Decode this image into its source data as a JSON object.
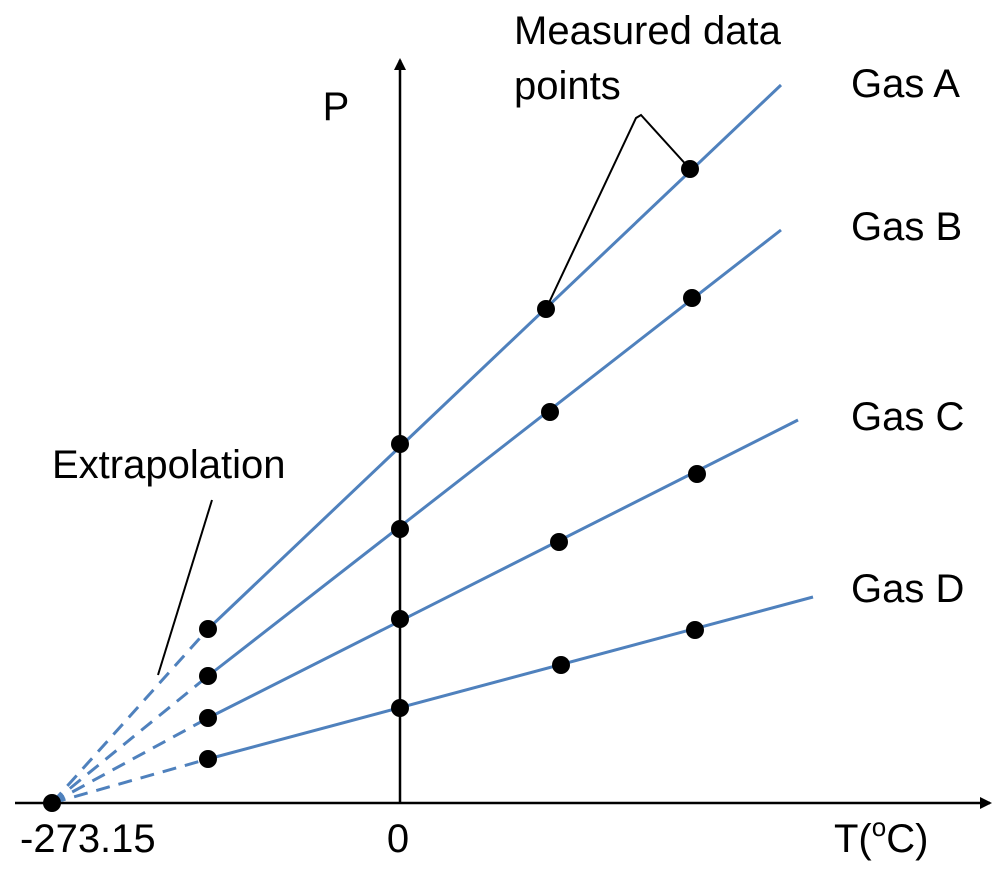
{
  "axes": {
    "y_label": "P",
    "x_label_main": "T(",
    "x_label_sup": "o",
    "x_label_end": "C)",
    "origin_tick": "0",
    "absolute_zero_tick": "-273.15"
  },
  "annotations": {
    "measured_line1": "Measured data",
    "measured_line2": "points",
    "extrapolation": "Extrapolation"
  },
  "gases": [
    {
      "name": "Gas A"
    },
    {
      "name": "Gas B"
    },
    {
      "name": "Gas C"
    },
    {
      "name": "Gas D"
    }
  ],
  "colors": {
    "line": "#4f81bd",
    "point": "#000000",
    "axis": "#000000"
  }
}
